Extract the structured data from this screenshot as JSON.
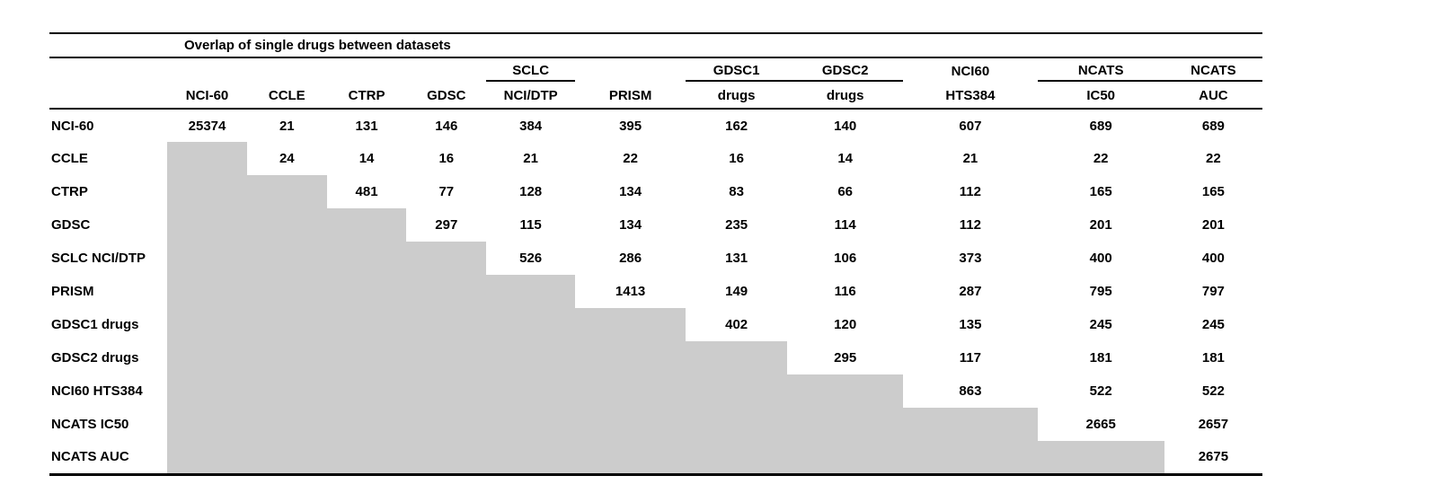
{
  "title": "Overlap of single drugs between datasets",
  "colors": {
    "background": "#ffffff",
    "text": "#000000",
    "rule": "#000000",
    "masked_cell": "#cccccc"
  },
  "table": {
    "columns": [
      {
        "group": "",
        "name": "NCI-60",
        "group_underline": false
      },
      {
        "group": "",
        "name": "CCLE",
        "group_underline": false
      },
      {
        "group": "",
        "name": "CTRP",
        "group_underline": false
      },
      {
        "group": "",
        "name": "GDSC",
        "group_underline": false
      },
      {
        "group": "SCLC",
        "name": "NCI/DTP",
        "group_underline": true
      },
      {
        "group": "",
        "name": "PRISM",
        "group_underline": false
      },
      {
        "group": "GDSC1",
        "name": "drugs",
        "group_underline": true
      },
      {
        "group": "GDSC2",
        "name": "drugs",
        "group_underline": true
      },
      {
        "group": "NCI60",
        "name": "HTS384",
        "group_underline": false
      },
      {
        "group": "NCATS",
        "name": "IC50",
        "group_underline": true
      },
      {
        "group": "NCATS",
        "name": "AUC",
        "group_underline": true
      }
    ],
    "rows": [
      {
        "label": "NCI-60",
        "values": [
          "25374",
          "21",
          "131",
          "146",
          "384",
          "395",
          "162",
          "140",
          "607",
          "689",
          "689"
        ]
      },
      {
        "label": "CCLE",
        "values": [
          "24",
          "14",
          "16",
          "21",
          "22",
          "16",
          "14",
          "21",
          "22",
          "22"
        ]
      },
      {
        "label": "CTRP",
        "values": [
          "481",
          "77",
          "128",
          "134",
          "83",
          "66",
          "112",
          "165",
          "165"
        ]
      },
      {
        "label": "GDSC",
        "values": [
          "297",
          "115",
          "134",
          "235",
          "114",
          "112",
          "201",
          "201"
        ]
      },
      {
        "label": "SCLC NCI/DTP",
        "values": [
          "526",
          "286",
          "131",
          "106",
          "373",
          "400",
          "400"
        ]
      },
      {
        "label": "PRISM",
        "values": [
          "1413",
          "149",
          "116",
          "287",
          "795",
          "797"
        ]
      },
      {
        "label": "GDSC1 drugs",
        "values": [
          "402",
          "120",
          "135",
          "245",
          "245"
        ]
      },
      {
        "label": "GDSC2 drugs",
        "values": [
          "295",
          "117",
          "181",
          "181"
        ]
      },
      {
        "label": "NCI60 HTS384",
        "values": [
          "863",
          "522",
          "522"
        ]
      },
      {
        "label": "NCATS IC50",
        "values": [
          "2665",
          "2657"
        ]
      },
      {
        "label": "NCATS AUC",
        "values": [
          "2675"
        ]
      }
    ]
  }
}
